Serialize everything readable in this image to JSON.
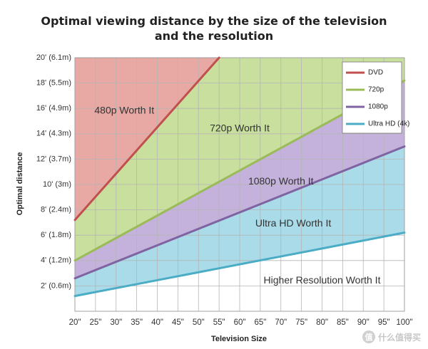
{
  "chart_data": {
    "type": "area",
    "title": "Optimal viewing distance by the size of the television",
    "title_line2": "and the resolution",
    "xlabel": "Television Size",
    "ylabel": "Optimal distance",
    "xlim": [
      20,
      100
    ],
    "ylim": [
      0,
      20
    ],
    "x_ticks": [
      20,
      25,
      30,
      35,
      40,
      45,
      50,
      55,
      60,
      65,
      70,
      75,
      80,
      85,
      90,
      95,
      100
    ],
    "x_tick_labels": [
      "20\"",
      "25\"",
      "30\"",
      "35\"",
      "40\"",
      "45\"",
      "50\"",
      "55\"",
      "60\"",
      "65\"",
      "70\"",
      "75\"",
      "80\"",
      "85\"",
      "90\"",
      "95\"",
      "100\""
    ],
    "y_ticks": [
      2,
      4,
      6,
      8,
      10,
      12,
      14,
      16,
      18,
      20
    ],
    "y_tick_labels": [
      "2' (0.6m)",
      "4' (1.2m)",
      "6' (1.8m)",
      "8' (2.4m)",
      "10' (3m)",
      "12' (3.7m)",
      "14' (4.3m)",
      "16' (4.9m)",
      "18' (5.5m)",
      "20' (6.1m)"
    ],
    "series": [
      {
        "name": "DVD",
        "color": "#c0504d",
        "x": [
          20,
          55
        ],
        "y": [
          7.2,
          20
        ]
      },
      {
        "name": "720p",
        "color": "#9bbb59",
        "x": [
          20,
          100
        ],
        "y": [
          4.0,
          18.2
        ]
      },
      {
        "name": "1080p",
        "color": "#8064a2",
        "x": [
          20,
          100
        ],
        "y": [
          2.6,
          13.0
        ]
      },
      {
        "name": "Ultra HD (4k)",
        "color": "#4bacc6",
        "x": [
          20,
          100
        ],
        "y": [
          1.2,
          6.2
        ]
      }
    ],
    "regions": [
      {
        "label": "480p Worth It",
        "fill": "#e8a8a4",
        "lx": 32,
        "ly": 15.8
      },
      {
        "label": "720p Worth It",
        "fill": "#c9df9e",
        "lx": 60,
        "ly": 14.4
      },
      {
        "label": "1080p Worth It",
        "fill": "#c4b2dc",
        "lx": 70,
        "ly": 10.2
      },
      {
        "label": "Ultra HD Worth It",
        "fill": "#a9dbe8",
        "lx": 73,
        "ly": 6.9
      },
      {
        "label": "Higher Resolution Worth It",
        "fill": "#ffffff",
        "lx": 80,
        "ly": 2.4
      }
    ],
    "legend_position": "top-right",
    "grid": true
  },
  "watermark": {
    "text": "什么值得买",
    "logo_char": "值"
  }
}
